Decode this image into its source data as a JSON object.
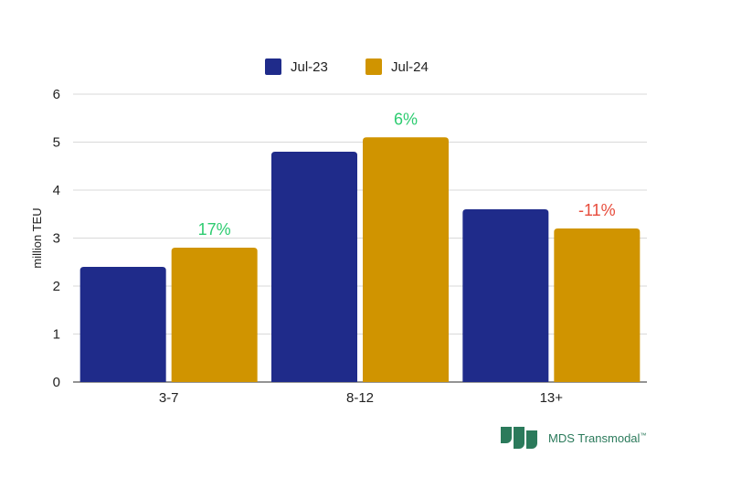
{
  "chart_data": {
    "type": "bar",
    "title": "",
    "xlabel": "",
    "ylabel": "million TEU",
    "ylim": [
      0,
      6
    ],
    "yticks": [
      0,
      1,
      2,
      3,
      4,
      5,
      6
    ],
    "grid": true,
    "legend_position": "top-center",
    "categories": [
      "3-7",
      "8-12",
      "13+"
    ],
    "series": [
      {
        "name": "Jul-23",
        "color": "#1f2b8a",
        "values": [
          2.4,
          4.8,
          3.6
        ]
      },
      {
        "name": "Jul-24",
        "color": "#d09400",
        "values": [
          2.8,
          5.1,
          3.2
        ]
      }
    ],
    "annotations": [
      {
        "category": "3-7",
        "series": "Jul-24",
        "text": "17%",
        "color": "#2ecc71"
      },
      {
        "category": "8-12",
        "series": "Jul-24",
        "text": "6%",
        "color": "#2ecc71"
      },
      {
        "category": "13+",
        "series": "Jul-24",
        "text": "-11%",
        "color": "#e74c3c"
      }
    ]
  },
  "branding": {
    "logo_text": "MDS Transmodal",
    "logo_mark": "™",
    "logo_color": "#2b7a5b"
  }
}
